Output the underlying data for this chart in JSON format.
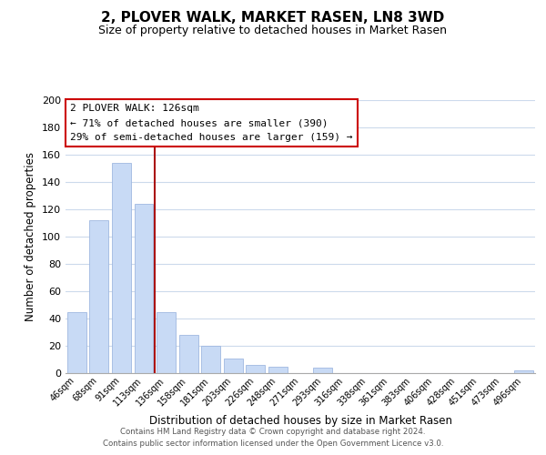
{
  "title": "2, PLOVER WALK, MARKET RASEN, LN8 3WD",
  "subtitle": "Size of property relative to detached houses in Market Rasen",
  "xlabel": "Distribution of detached houses by size in Market Rasen",
  "ylabel": "Number of detached properties",
  "categories": [
    "46sqm",
    "68sqm",
    "91sqm",
    "113sqm",
    "136sqm",
    "158sqm",
    "181sqm",
    "203sqm",
    "226sqm",
    "248sqm",
    "271sqm",
    "293sqm",
    "316sqm",
    "338sqm",
    "361sqm",
    "383sqm",
    "406sqm",
    "428sqm",
    "451sqm",
    "473sqm",
    "496sqm"
  ],
  "values": [
    45,
    112,
    154,
    124,
    45,
    28,
    20,
    11,
    6,
    5,
    0,
    4,
    0,
    0,
    0,
    0,
    0,
    0,
    0,
    0,
    2
  ],
  "bar_color": "#c8daf5",
  "bar_edge_color": "#a0b8e0",
  "annotation_title": "2 PLOVER WALK: 126sqm",
  "annotation_line1": "← 71% of detached houses are smaller (390)",
  "annotation_line2": "29% of semi-detached houses are larger (159) →",
  "annotation_box_color": "#ffffff",
  "annotation_box_edge_color": "#cc0000",
  "highlight_line_color": "#aa1111",
  "ylim": [
    0,
    200
  ],
  "yticks": [
    0,
    20,
    40,
    60,
    80,
    100,
    120,
    140,
    160,
    180,
    200
  ],
  "footer_line1": "Contains HM Land Registry data © Crown copyright and database right 2024.",
  "footer_line2": "Contains public sector information licensed under the Open Government Licence v3.0.",
  "bg_color": "#ffffff",
  "grid_color": "#ccdaec"
}
